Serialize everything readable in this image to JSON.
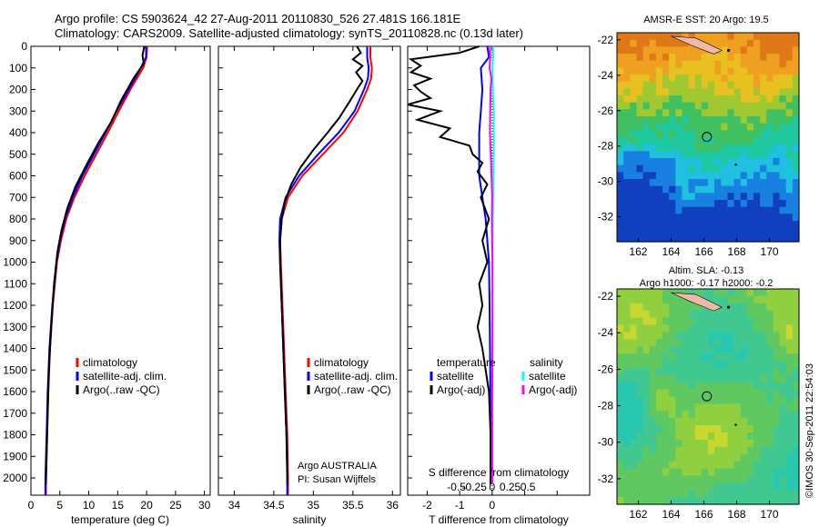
{
  "header": {
    "line1": "Argo profile: CS 5903624_42 27-Aug-2011 20110830_526 27.481S 166.181E",
    "line2": "Climatology: CARS2009. Satellite-adjusted climatology: synTS_20110828.nc (0.13d later)"
  },
  "footer_stamp": "©IMOS 30-Sep-2011 22:54:03",
  "chart_data": [
    {
      "id": "temperature",
      "type": "line",
      "xlabel": "temperature (deg C)",
      "ylabel": "",
      "xlim": [
        0,
        31
      ],
      "ylim": [
        2080,
        0
      ],
      "x_ticks": [
        0,
        5,
        10,
        15,
        20,
        25,
        30
      ],
      "y_ticks": [
        0,
        100,
        200,
        300,
        400,
        500,
        600,
        700,
        800,
        900,
        1000,
        1100,
        1200,
        1300,
        1400,
        1500,
        1600,
        1700,
        1800,
        1900,
        2000
      ],
      "legend": {
        "position": "lower-middle",
        "items": [
          {
            "label": "climatology",
            "color": "#ff0000"
          },
          {
            "label": "satellite-adj. clim.",
            "color": "#0000ff"
          },
          {
            "label": "Argo(..raw -QC)",
            "color": "#000000"
          }
        ]
      },
      "series": [
        {
          "name": "climatology",
          "color": "#ff0000",
          "depth": [
            0,
            50,
            100,
            200,
            300,
            400,
            500,
            600,
            700,
            800,
            900,
            1000,
            1200,
            1400,
            1600,
            1800,
            2000,
            2080
          ],
          "values": [
            20.1,
            20.0,
            19.4,
            17.2,
            15.2,
            13.3,
            11.3,
            9.3,
            7.5,
            6.1,
            5.2,
            4.5,
            3.8,
            3.3,
            3.0,
            2.8,
            2.6,
            2.6
          ]
        },
        {
          "name": "satellite-adj. clim.",
          "color": "#0000ff",
          "depth": [
            0,
            50,
            100,
            200,
            300,
            400,
            500,
            600,
            700,
            800,
            900,
            1000,
            1200,
            1400,
            1600,
            1800,
            2000,
            2080
          ],
          "values": [
            19.9,
            19.9,
            19.0,
            16.9,
            14.8,
            12.9,
            10.9,
            8.9,
            7.2,
            5.9,
            5.0,
            4.4,
            3.7,
            3.2,
            2.9,
            2.7,
            2.5,
            2.5
          ]
        },
        {
          "name": "Argo(..raw -QC)",
          "color": "#000000",
          "depth": [
            0,
            40,
            80,
            150,
            250,
            350,
            450,
            550,
            650,
            750,
            850,
            950,
            1100,
            1300,
            1500,
            1700,
            1900,
            2030
          ],
          "values": [
            19.6,
            19.3,
            19.5,
            17.7,
            15.6,
            13.9,
            11.6,
            9.6,
            7.7,
            6.3,
            5.3,
            4.6,
            4.0,
            3.5,
            3.1,
            2.9,
            2.7,
            2.6
          ]
        }
      ]
    },
    {
      "id": "salinity",
      "type": "line",
      "xlabel": "salinity",
      "xlim": [
        33.8,
        36.1
      ],
      "ylim": [
        2080,
        0
      ],
      "x_ticks": [
        34,
        34.5,
        35,
        35.5,
        36
      ],
      "legend": {
        "position": "lower-right",
        "items": [
          {
            "label": "climatology",
            "color": "#ff0000"
          },
          {
            "label": "satellite-adj. clim.",
            "color": "#0000ff"
          },
          {
            "label": "Argo(..raw -QC)",
            "color": "#000000"
          }
        ]
      },
      "annotation": {
        "line1": "Argo AUSTRALIA",
        "line2": "PI: Susan Wijffels"
      },
      "series": [
        {
          "name": "climatology",
          "color": "#ff0000",
          "depth": [
            0,
            50,
            100,
            150,
            200,
            300,
            400,
            500,
            600,
            700,
            800,
            900,
            1000,
            1200,
            1400,
            1600,
            1800,
            2000,
            2080
          ],
          "values": [
            35.72,
            35.72,
            35.74,
            35.73,
            35.68,
            35.56,
            35.38,
            35.12,
            34.86,
            34.68,
            34.6,
            34.58,
            34.59,
            34.61,
            34.63,
            34.65,
            34.67,
            34.68,
            34.68
          ]
        },
        {
          "name": "satellite-adj. clim.",
          "color": "#0000ff",
          "depth": [
            0,
            50,
            100,
            150,
            200,
            300,
            400,
            500,
            600,
            700,
            800,
            900,
            1000,
            1200,
            1400,
            1600,
            1800,
            2000,
            2080
          ],
          "values": [
            35.68,
            35.68,
            35.7,
            35.69,
            35.64,
            35.52,
            35.32,
            35.06,
            34.82,
            34.65,
            34.58,
            34.57,
            34.58,
            34.6,
            34.62,
            34.64,
            34.66,
            34.67,
            34.67
          ]
        },
        {
          "name": "Argo(..raw -QC)",
          "color": "#000000",
          "depth": [
            0,
            30,
            60,
            90,
            120,
            160,
            200,
            260,
            330,
            400,
            480,
            560,
            640,
            720,
            800,
            900,
            1000,
            1200,
            1400,
            1600,
            1800,
            2000,
            2030
          ],
          "values": [
            35.55,
            35.6,
            35.5,
            35.62,
            35.54,
            35.62,
            35.55,
            35.45,
            35.33,
            35.18,
            35.0,
            34.84,
            34.72,
            34.64,
            34.6,
            34.58,
            34.58,
            34.6,
            34.62,
            34.64,
            34.66,
            34.67,
            34.67
          ]
        }
      ]
    },
    {
      "id": "difference",
      "type": "line",
      "xlabel": "T difference from climatology",
      "top_xlabel": "S difference from climatology",
      "xlim": [
        -2.6,
        3.0
      ],
      "ylim": [
        2080,
        0
      ],
      "x_ticks": [
        -2,
        -1,
        0,
        1,
        2
      ],
      "x_tick_labels": [
        "-2",
        "-1",
        "0",
        "",
        ""
      ],
      "s_ticks": [
        -0.5,
        -0.25,
        0,
        0.25,
        0.5
      ],
      "s_tick_labels": [
        "-0.5",
        "-0.25",
        "0",
        "0.25",
        "0.5"
      ],
      "legend": {
        "position": "lower",
        "groups": [
          {
            "title": "temperature",
            "items": [
              {
                "label": "satellite",
                "color": "#0000ff"
              },
              {
                "label": "Argo(-adj)",
                "color": "#000000"
              }
            ]
          },
          {
            "title": "salinity",
            "items": [
              {
                "label": "satellite",
                "color": "#00ffff"
              },
              {
                "label": "Argo(-adj)",
                "color": "#ff00ff"
              }
            ]
          }
        ]
      },
      "series": [
        {
          "name": "temperature satellite",
          "color": "#0000ff",
          "depth": [
            0,
            50,
            100,
            200,
            300,
            400,
            500,
            600,
            700,
            800,
            900,
            1000,
            1200,
            1500,
            1800,
            2000,
            2030
          ],
          "values": [
            -0.15,
            -0.1,
            -0.35,
            -0.3,
            -0.35,
            -0.4,
            -0.4,
            -0.4,
            -0.3,
            -0.2,
            -0.15,
            -0.1,
            -0.08,
            -0.06,
            -0.05,
            -0.05,
            -0.05
          ]
        },
        {
          "name": "temperature Argo(-adj)",
          "color": "#000000",
          "depth": [
            0,
            30,
            60,
            90,
            120,
            150,
            180,
            210,
            240,
            270,
            300,
            340,
            380,
            420,
            460,
            500,
            540,
            580,
            640,
            700,
            800,
            900,
            1000,
            1100,
            1200,
            1300,
            1400,
            1500,
            1600,
            1800,
            2000,
            2030
          ],
          "values": [
            -0.4,
            -1.0,
            -2.5,
            -2.2,
            -2.5,
            -1.9,
            -2.4,
            -2.2,
            -1.9,
            -2.6,
            -1.6,
            -2.3,
            -1.3,
            -1.6,
            -0.7,
            -0.6,
            -0.3,
            -0.45,
            -0.15,
            -0.35,
            -0.1,
            -0.3,
            -0.15,
            -0.4,
            -0.3,
            -0.45,
            -0.3,
            -0.2,
            -0.1,
            -0.05,
            -0.05,
            -0.05
          ]
        },
        {
          "name": "salinity satellite",
          "color": "#00ffff",
          "depth": [
            0,
            50,
            100,
            200,
            300,
            400,
            500,
            600,
            700,
            800,
            1000,
            1200,
            1500,
            1800,
            2000,
            2030
          ],
          "values": [
            0.03,
            0.03,
            0.01,
            0.02,
            0.05,
            0.05,
            0.05,
            0.04,
            0.03,
            0.02,
            0.01,
            0.01,
            0.005,
            0.005,
            0.005,
            0.005
          ]
        },
        {
          "name": "salinity Argo(-adj)",
          "color": "#ff00ff",
          "depth": [
            0,
            50,
            100,
            150,
            200,
            300,
            400,
            500,
            600,
            700,
            800,
            1000,
            1200,
            1400,
            1600,
            1800,
            2000,
            2030
          ],
          "values": [
            -0.07,
            -0.06,
            -0.08,
            -0.02,
            -0.05,
            -0.06,
            -0.07,
            -0.04,
            -0.02,
            0.0,
            -0.01,
            0.01,
            0.01,
            0.01,
            0.0,
            0.0,
            0.0,
            0.0
          ]
        }
      ]
    },
    {
      "id": "sst_map",
      "type": "heatmap",
      "title": "AMSR-E SST: 20 Argo: 19.5",
      "xlim": [
        160.7,
        171.8
      ],
      "ylim": [
        -33.4,
        -21.6
      ],
      "x_ticks": [
        162,
        164,
        166,
        168,
        170
      ],
      "y_ticks": [
        -22,
        -24,
        -26,
        -28,
        -30,
        -32
      ],
      "marker": {
        "lon": 166.181,
        "lat": -27.481
      },
      "colors": [
        "#1040c0",
        "#1880e0",
        "#20c0e0",
        "#20c8a0",
        "#40c060",
        "#a0c830",
        "#e8c020",
        "#f0a020",
        "#e07818"
      ]
    },
    {
      "id": "sla_map",
      "type": "heatmap",
      "title_line1": "Altim. SLA: -0.13",
      "title_line2": "Argo h1000: -0.17 h2000: -0.2",
      "xlim": [
        160.7,
        171.8
      ],
      "ylim": [
        -33.4,
        -21.6
      ],
      "x_ticks": [
        162,
        164,
        166,
        168,
        170
      ],
      "y_ticks": [
        -22,
        -24,
        -26,
        -28,
        -30,
        -32
      ],
      "marker": {
        "lon": 166.181,
        "lat": -27.481
      },
      "colors": [
        "#10b8d0",
        "#28c8b0",
        "#40c890",
        "#60c860",
        "#90d040",
        "#c8d830",
        "#e8c020"
      ]
    }
  ]
}
